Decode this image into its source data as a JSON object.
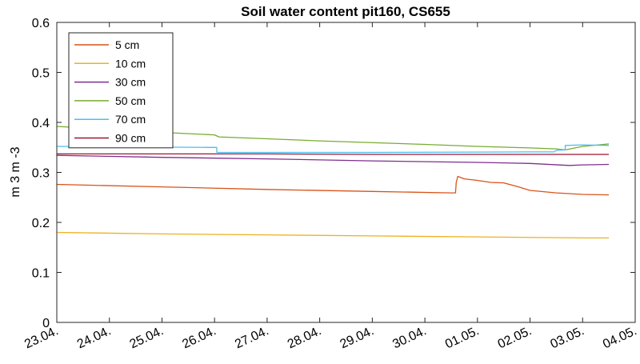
{
  "chart_data": {
    "type": "line",
    "title": "Soil water content pit160, CS655",
    "xlabel": "",
    "ylabel": "m 3 m -3",
    "ylim": [
      0,
      0.6
    ],
    "xlim": [
      "2024-04-23",
      "2024-05-04"
    ],
    "x_tick_labels": [
      "23.04.",
      "24.04.",
      "25.04.",
      "26.04.",
      "27.04.",
      "28.04.",
      "29.04.",
      "30.04.",
      "01.05.",
      "02.05.",
      "03.05.",
      "04.05."
    ],
    "y_ticks": [
      0,
      0.1,
      0.2,
      0.3,
      0.4,
      0.5,
      0.6
    ],
    "y_tick_labels": [
      "0",
      "0.1",
      "0.2",
      "0.3",
      "0.4",
      "0.5",
      "0.6"
    ],
    "grid": false,
    "legend_position": "top-left",
    "series": [
      {
        "name": "5 cm",
        "color": "#d95319",
        "points": [
          [
            "2024-04-23",
            0.276
          ],
          [
            "2024-04-25",
            0.271
          ],
          [
            "2024-04-27",
            0.266
          ],
          [
            "2024-04-29",
            0.262
          ],
          [
            "2024-04-30T12:00",
            0.259
          ],
          [
            "2024-04-30T14:00",
            0.259
          ],
          [
            "2024-04-30T14:20",
            0.28
          ],
          [
            "2024-04-30T15:00",
            0.292
          ],
          [
            "2024-04-30T18:00",
            0.287
          ],
          [
            "2024-05-01",
            0.284
          ],
          [
            "2024-05-01T06:00",
            0.28
          ],
          [
            "2024-05-01T12:00",
            0.279
          ],
          [
            "2024-05-01T18:00",
            0.272
          ],
          [
            "2024-05-02",
            0.264
          ],
          [
            "2024-05-02T12:00",
            0.259
          ],
          [
            "2024-05-03",
            0.256
          ],
          [
            "2024-05-03T12:00",
            0.255
          ]
        ]
      },
      {
        "name": "10 cm",
        "color": "#edb120",
        "points": [
          [
            "2024-04-23",
            0.18
          ],
          [
            "2024-04-25",
            0.177
          ],
          [
            "2024-04-27",
            0.175
          ],
          [
            "2024-04-29",
            0.173
          ],
          [
            "2024-05-01",
            0.171
          ],
          [
            "2024-05-03",
            0.169
          ],
          [
            "2024-05-03T12:00",
            0.169
          ]
        ]
      },
      {
        "name": "30 cm",
        "color": "#7e2f8e",
        "points": [
          [
            "2024-04-23",
            0.334
          ],
          [
            "2024-04-25",
            0.33
          ],
          [
            "2024-04-27",
            0.327
          ],
          [
            "2024-04-29",
            0.323
          ],
          [
            "2024-05-01",
            0.32
          ],
          [
            "2024-05-02",
            0.318
          ],
          [
            "2024-05-02T18:00",
            0.314
          ],
          [
            "2024-05-03",
            0.315
          ],
          [
            "2024-05-03T12:00",
            0.316
          ]
        ]
      },
      {
        "name": "50 cm",
        "color": "#77ac30",
        "points": [
          [
            "2024-04-23",
            0.392
          ],
          [
            "2024-04-25",
            0.38
          ],
          [
            "2024-04-26",
            0.375
          ],
          [
            "2024-04-26T02:00",
            0.371
          ],
          [
            "2024-04-28",
            0.363
          ],
          [
            "2024-04-30",
            0.356
          ],
          [
            "2024-05-01",
            0.352
          ],
          [
            "2024-05-02",
            0.349
          ],
          [
            "2024-05-02T12:00",
            0.347
          ],
          [
            "2024-05-02T16:00",
            0.345
          ],
          [
            "2024-05-03",
            0.352
          ],
          [
            "2024-05-03T12:00",
            0.357
          ]
        ]
      },
      {
        "name": "70 cm",
        "color": "#4dbeee",
        "points": [
          [
            "2024-04-23",
            0.352
          ],
          [
            "2024-04-26",
            0.35
          ],
          [
            "2024-04-26T01:00",
            0.35
          ],
          [
            "2024-04-26T01:05",
            0.34
          ],
          [
            "2024-04-29",
            0.34
          ],
          [
            "2024-05-02",
            0.341
          ],
          [
            "2024-05-02T11:00",
            0.341
          ],
          [
            "2024-05-02T12:00",
            0.344
          ],
          [
            "2024-05-02T16:00",
            0.345
          ],
          [
            "2024-05-02T16:05",
            0.354
          ],
          [
            "2024-05-03",
            0.355
          ],
          [
            "2024-05-03T12:00",
            0.354
          ]
        ]
      },
      {
        "name": "90 cm",
        "color": "#a2142f",
        "points": [
          [
            "2024-04-23",
            0.337
          ],
          [
            "2024-04-25",
            0.337
          ],
          [
            "2024-04-27",
            0.337
          ],
          [
            "2024-04-29",
            0.336
          ],
          [
            "2024-05-01",
            0.336
          ],
          [
            "2024-05-03",
            0.336
          ],
          [
            "2024-05-03T12:00",
            0.336
          ]
        ]
      }
    ]
  }
}
